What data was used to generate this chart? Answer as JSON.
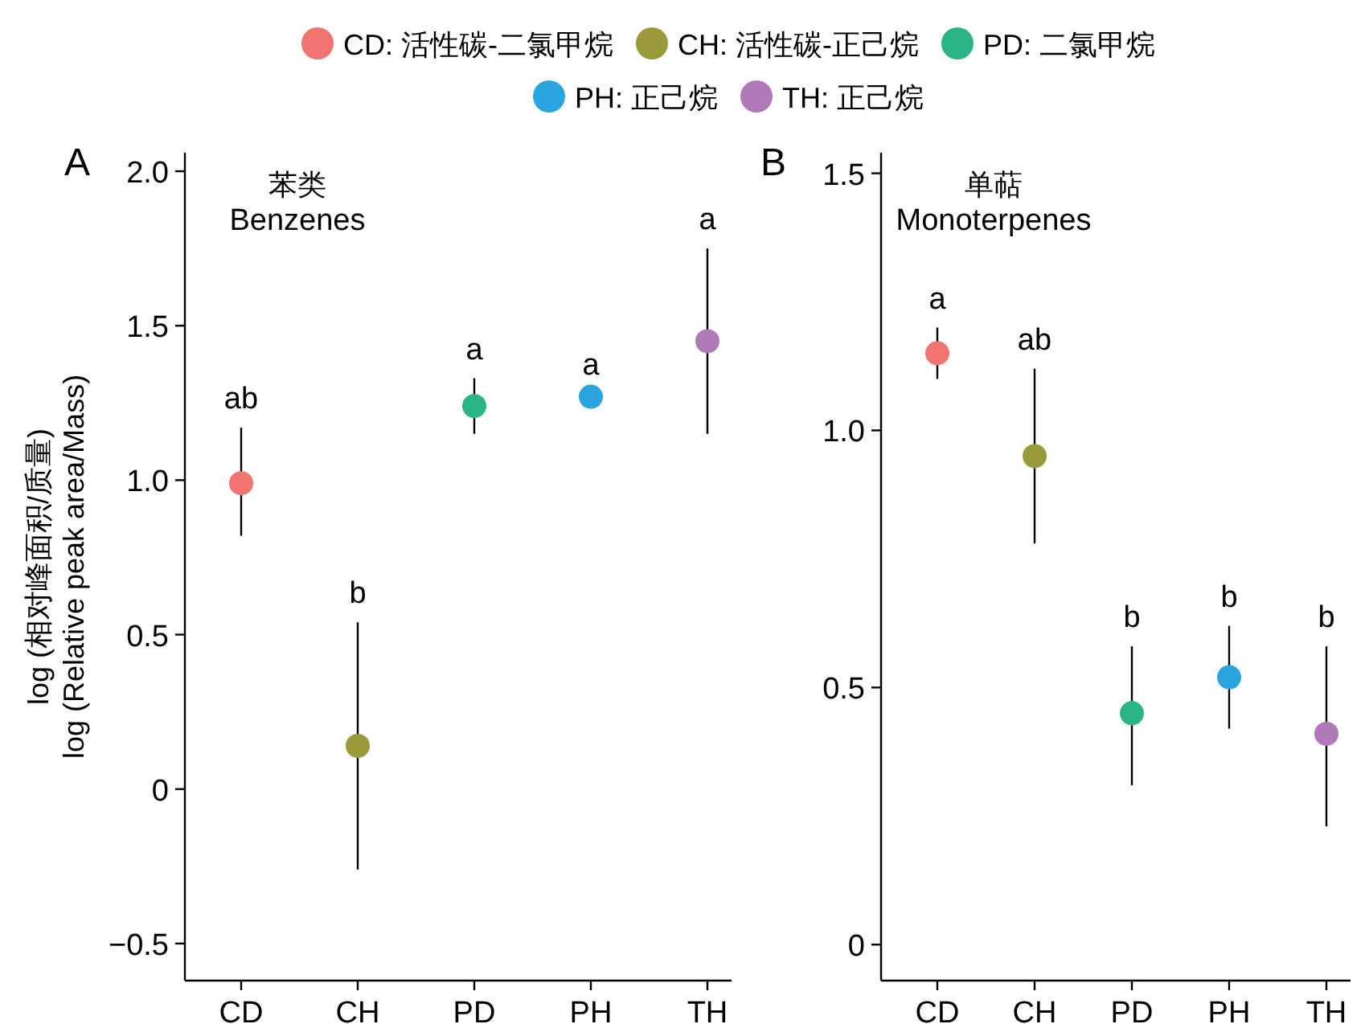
{
  "chart_data": [
    {
      "type": "scatter",
      "title": "苯类",
      "subtitle": "Benzenes",
      "ylabel": "log (相对峰面积/质量)\nlog (Relative peak area/Mass)",
      "annotations": [
        "A",
        {
          "text": "b",
          "x": "CH",
          "y": 0.54
        }
      ],
      "legend": "top",
      "marker": "circle",
      "categories": [
        "CD",
        "CH",
        "PD",
        "PH",
        "TH"
      ],
      "ylim": [
        -0.62,
        2.06
      ],
      "yticks": [
        {
          "value": -0.5,
          "label": "−0.5"
        },
        0,
        {
          "value": 0.5,
          "label": "0.5"
        },
        {
          "value": 1,
          "label": "1.0"
        },
        {
          "value": 1.5,
          "label": "1.5"
        },
        {
          "value": 2,
          "label": "2.0"
        }
      ],
      "series": [
        {
          "name": "CD: 活性碳-二氯甲烷",
          "color": "#f07470",
          "values": [
            0.99,
            null,
            null,
            null,
            null
          ],
          "errors": [
            [
              0.82,
              1.17
            ],
            null,
            null,
            null,
            null
          ],
          "value_labels": [
            "ab",
            null,
            null,
            null,
            null
          ]
        },
        {
          "name": "CH: 活性碳-正己烷",
          "color": "#9b9a3a",
          "values": [
            null,
            0.14,
            null,
            null,
            null
          ],
          "errors": [
            null,
            [
              -0.26,
              0.54
            ],
            null,
            null,
            null
          ]
        },
        {
          "name": "PD: 二氯甲烷",
          "color": "#2bb585",
          "values": [
            null,
            null,
            1.24,
            null,
            null
          ],
          "errors": [
            null,
            null,
            [
              1.15,
              1.33
            ],
            null,
            null
          ],
          "value_labels": [
            null,
            null,
            "a",
            null,
            null
          ]
        },
        {
          "name": "PH: 正己烷",
          "color": "#2aa5e0",
          "values": [
            null,
            null,
            null,
            1.27,
            null
          ],
          "errors": [
            null,
            null,
            null,
            [
              1.26,
              1.28
            ],
            null
          ],
          "value_labels": [
            null,
            null,
            null,
            "a",
            null
          ]
        },
        {
          "name": "TH: 正己烷",
          "color": "#b07ab8",
          "values": [
            null,
            null,
            null,
            null,
            1.45
          ],
          "errors": [
            null,
            null,
            null,
            null,
            [
              1.15,
              1.75
            ]
          ],
          "value_labels": [
            null,
            null,
            null,
            null,
            "a"
          ]
        }
      ]
    },
    {
      "type": "scatter",
      "title": "单萜",
      "subtitle": "Monoterpenes",
      "annotations": [
        "B"
      ],
      "marker": "circle",
      "categories": [
        "CD",
        "CH",
        "PD",
        "PH",
        "TH"
      ],
      "ylim": [
        -0.07,
        1.54
      ],
      "yticks": [
        0,
        {
          "value": 0.5,
          "label": "0.5"
        },
        {
          "value": 1,
          "label": "1.0"
        },
        {
          "value": 1.5,
          "label": "1.5"
        }
      ],
      "series": [
        {
          "color": "#f07470",
          "values": [
            1.15,
            null,
            null,
            null,
            null
          ],
          "errors": [
            [
              1.1,
              1.2
            ],
            null,
            null,
            null,
            null
          ],
          "value_labels": [
            "a",
            null,
            null,
            null,
            null
          ]
        },
        {
          "color": "#9b9a3a",
          "values": [
            null,
            0.95,
            null,
            null,
            null
          ],
          "errors": [
            null,
            [
              0.78,
              1.12
            ],
            null,
            null,
            null
          ],
          "value_labels": [
            null,
            "ab",
            null,
            null,
            null
          ]
        },
        {
          "color": "#2bb585",
          "values": [
            null,
            null,
            0.45,
            null,
            null
          ],
          "errors": [
            null,
            null,
            [
              0.31,
              0.58
            ],
            null,
            null
          ],
          "value_labels": [
            null,
            null,
            "b",
            null,
            null
          ]
        },
        {
          "color": "#2aa5e0",
          "values": [
            null,
            null,
            null,
            0.52,
            null
          ],
          "errors": [
            null,
            null,
            null,
            [
              0.42,
              0.62
            ],
            null
          ],
          "value_labels": [
            null,
            null,
            null,
            "b",
            null
          ]
        },
        {
          "color": "#b07ab8",
          "values": [
            null,
            null,
            null,
            null,
            0.41
          ],
          "errors": [
            null,
            null,
            null,
            null,
            [
              0.23,
              0.58
            ]
          ],
          "value_labels": [
            null,
            null,
            null,
            null,
            "b"
          ]
        }
      ]
    }
  ]
}
